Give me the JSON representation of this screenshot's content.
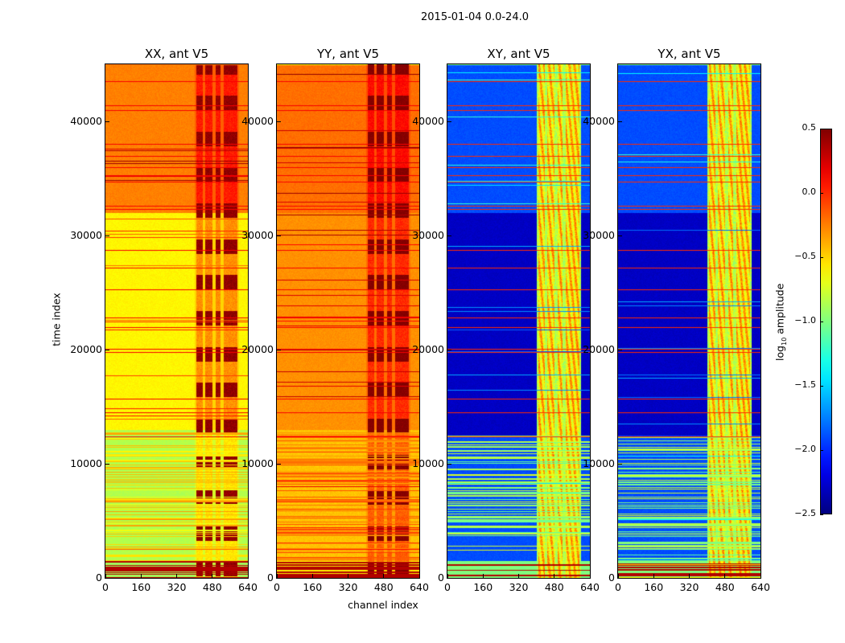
{
  "chart_data": {
    "type": "heatmap",
    "title": "2015-01-04 0.0-24.0",
    "xlabel": "channel index",
    "ylabel": "time index",
    "xlim": [
      0,
      640
    ],
    "ylim": [
      0,
      45000
    ],
    "xticks": [
      "0",
      "160",
      "320",
      "480",
      "640"
    ],
    "yticks": [
      "0",
      "10000",
      "20000",
      "30000",
      "40000"
    ],
    "colorbar": {
      "label": "log10 amplitude",
      "label_main": "log",
      "label_sub": "10",
      "label_rest": " amplitude",
      "range": [
        -2.5,
        0.5
      ],
      "ticks": [
        "0.5",
        "0.0",
        "−0.5",
        "−1.0",
        "−1.5",
        "−2.0",
        "−2.5"
      ],
      "colormap": "jet"
    },
    "panels": [
      {
        "title": "XX, ant V5",
        "segments": [
          [
            0,
            1500,
            -0.9
          ],
          [
            1500,
            13000,
            -0.85
          ],
          [
            13000,
            32000,
            -0.6
          ],
          [
            32000,
            45000,
            -0.25
          ]
        ],
        "band_value": 0.15,
        "line_value": 0.15,
        "dense_lines": [
          1500,
          13000,
          -0.5
        ]
      },
      {
        "title": "YY, ant V5",
        "segments": [
          [
            0,
            1500,
            -0.6
          ],
          [
            1500,
            13000,
            -0.45
          ],
          [
            13000,
            32000,
            -0.3
          ],
          [
            32000,
            45000,
            -0.2
          ]
        ],
        "band_value": 0.2,
        "line_value": 0.15,
        "dense_lines": [
          1500,
          13000,
          -0.2
        ]
      },
      {
        "title": "XY, ant V5",
        "segments": [
          [
            0,
            1500,
            -1.0
          ],
          [
            1500,
            12500,
            -1.9
          ],
          [
            12500,
            32000,
            -2.3
          ],
          [
            32000,
            45000,
            -1.9
          ]
        ],
        "band_value": -0.5,
        "line_value": 0.0,
        "dense_lines": [
          1500,
          12500,
          -0.9
        ]
      },
      {
        "title": "YX, ant V5",
        "segments": [
          [
            0,
            1500,
            -1.0
          ],
          [
            1500,
            12500,
            -1.9
          ],
          [
            12500,
            32000,
            -2.3
          ],
          [
            32000,
            45000,
            -1.9
          ]
        ],
        "band_value": -0.5,
        "line_value": 0.0,
        "dense_lines": [
          1500,
          12500,
          -0.9
        ]
      }
    ],
    "band_channels": [
      [
        405,
        435
      ],
      [
        448,
        480
      ],
      [
        492,
        515
      ],
      [
        530,
        590
      ]
    ],
    "bright_line_times": [
      12400,
      14500,
      15700,
      19800,
      20100,
      22000,
      22800,
      25300,
      27200,
      28700,
      32300,
      32600,
      34700,
      35300,
      36000,
      37000,
      38000,
      41000,
      41400,
      43500
    ]
  }
}
